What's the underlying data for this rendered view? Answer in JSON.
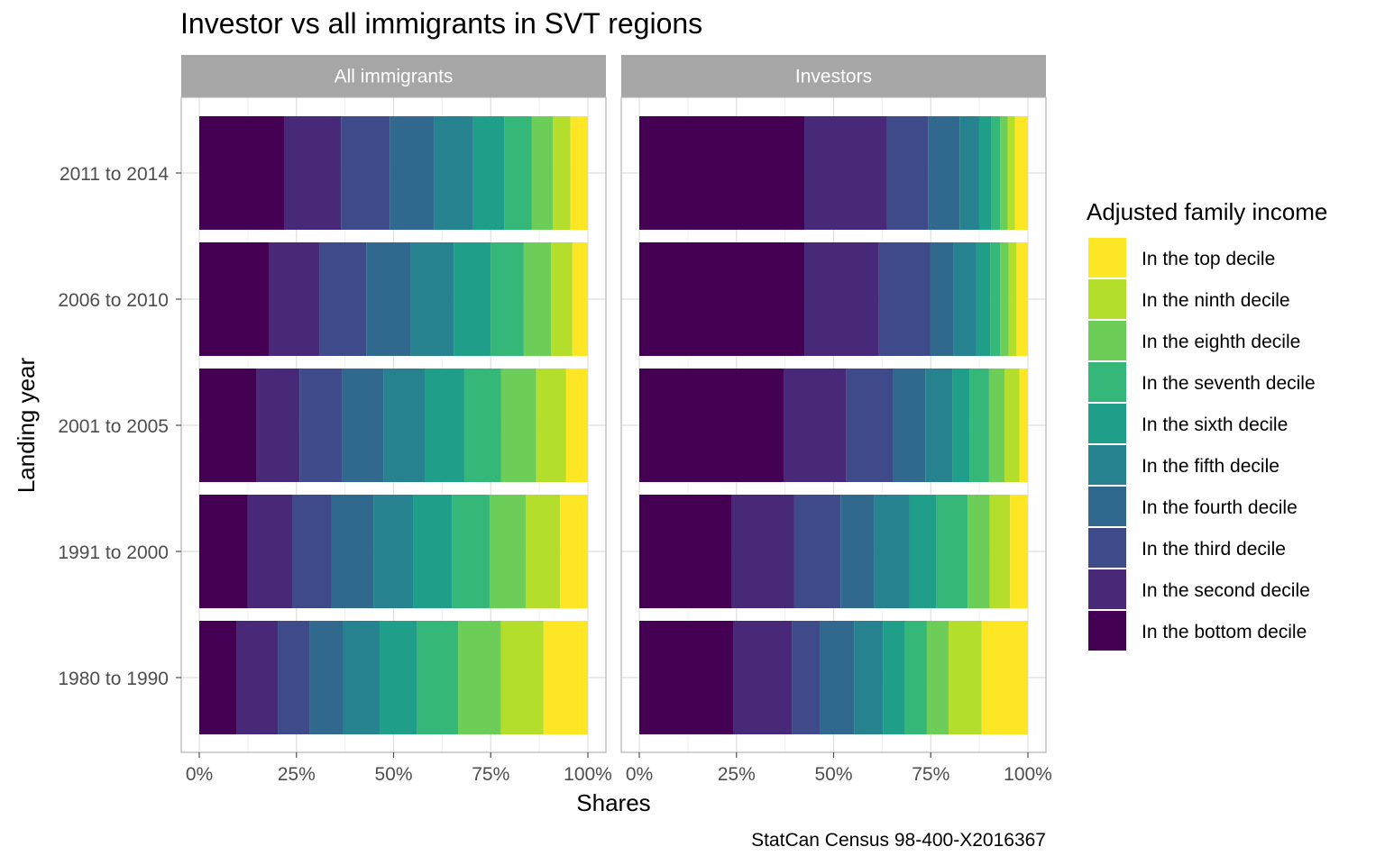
{
  "title": "Investor vs all immigrants in SVT regions",
  "caption": "StatCan Census 98-400-X2016367",
  "chart_data": {
    "type": "bar",
    "orientation": "horizontal",
    "stacked": "fill",
    "title": "Investor vs all immigrants in SVT regions",
    "xlabel": "Shares",
    "ylabel": "Landing year",
    "x_ticks": [
      "0%",
      "25%",
      "50%",
      "75%",
      "100%"
    ],
    "xlim": [
      0,
      1
    ],
    "categories": [
      "2011 to 2014",
      "2006 to 2010",
      "2001 to 2005",
      "1991 to 2000",
      "1980 to 1990"
    ],
    "legend": {
      "title": "Adjusted family income",
      "position": "right",
      "entries": [
        "In the top decile",
        "In the ninth decile",
        "In the eighth decile",
        "In the seventh decile",
        "In the sixth decile",
        "In the fifth decile",
        "In the fourth decile",
        "In the third decile",
        "In the second decile",
        "In the bottom decile"
      ]
    },
    "stack_order": [
      "In the bottom decile",
      "In the second decile",
      "In the third decile",
      "In the fourth decile",
      "In the fifth decile",
      "In the sixth decile",
      "In the seventh decile",
      "In the eighth decile",
      "In the ninth decile",
      "In the top decile"
    ],
    "colors": {
      "In the bottom decile": "#440154",
      "In the second decile": "#482878",
      "In the third decile": "#3E4A89",
      "In the fourth decile": "#31688E",
      "In the fifth decile": "#26828E",
      "In the sixth decile": "#1F9E89",
      "In the seventh decile": "#35B779",
      "In the eighth decile": "#6DCD59",
      "In the ninth decile": "#B4DE2C",
      "In the top decile": "#FDE725"
    },
    "facets": [
      {
        "name": "All immigrants",
        "series": [
          {
            "category": "2011 to 2014",
            "values": [
              0.22,
              0.145,
              0.125,
              0.115,
              0.1,
              0.08,
              0.07,
              0.055,
              0.045,
              0.045
            ]
          },
          {
            "category": "2006 to 2010",
            "values": [
              0.18,
              0.13,
              0.12,
              0.115,
              0.11,
              0.095,
              0.085,
              0.07,
              0.055,
              0.04
            ]
          },
          {
            "category": "2001 to 2005",
            "values": [
              0.148,
              0.11,
              0.11,
              0.107,
              0.105,
              0.102,
              0.095,
              0.09,
              0.077,
              0.056
            ]
          },
          {
            "category": "1991 to 2000",
            "values": [
              0.125,
              0.115,
              0.1,
              0.108,
              0.102,
              0.1,
              0.097,
              0.093,
              0.088,
              0.072
            ]
          },
          {
            "category": "1980 to 1990",
            "values": [
              0.097,
              0.105,
              0.082,
              0.086,
              0.095,
              0.096,
              0.105,
              0.11,
              0.11,
              0.114
            ]
          }
        ]
      },
      {
        "name": "Investors",
        "series": [
          {
            "category": "2011 to 2014",
            "values": [
              0.42,
              0.21,
              0.105,
              0.08,
              0.05,
              0.03,
              0.023,
              0.02,
              0.018,
              0.033
            ]
          },
          {
            "category": "2006 to 2010",
            "values": [
              0.42,
              0.19,
              0.13,
              0.06,
              0.058,
              0.035,
              0.025,
              0.022,
              0.02,
              0.029
            ]
          },
          {
            "category": "2001 to 2005",
            "values": [
              0.373,
              0.16,
              0.12,
              0.083,
              0.07,
              0.044,
              0.05,
              0.04,
              0.038,
              0.022
            ]
          },
          {
            "category": "1991 to 2000",
            "values": [
              0.238,
              0.16,
              0.12,
              0.087,
              0.09,
              0.07,
              0.08,
              0.057,
              0.052,
              0.046
            ]
          },
          {
            "category": "1980 to 1990",
            "values": [
              0.243,
              0.15,
              0.073,
              0.087,
              0.074,
              0.057,
              0.056,
              0.056,
              0.085,
              0.119
            ]
          }
        ]
      }
    ]
  }
}
